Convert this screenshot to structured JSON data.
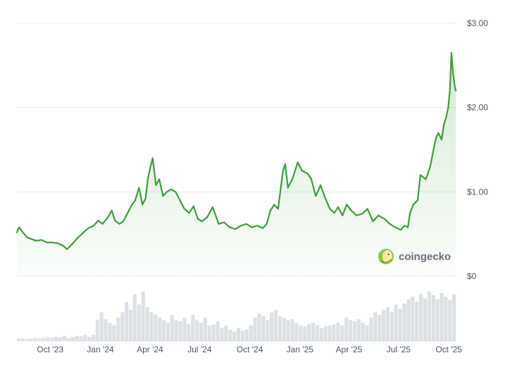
{
  "chart_data": {
    "type": "line",
    "title": "",
    "xlabel": "",
    "ylabel": "",
    "y_axis_position": "right",
    "ylim": [
      0,
      3
    ],
    "y_ticks": [
      {
        "value": 0,
        "label": "$0"
      },
      {
        "value": 1,
        "label": "$1.00"
      },
      {
        "value": 2,
        "label": "$2.00"
      },
      {
        "value": 3,
        "label": "$3.00"
      }
    ],
    "x_ticks": [
      {
        "date": "2023-10-01",
        "label": "Oct '23"
      },
      {
        "date": "2024-01-01",
        "label": "Jan '24"
      },
      {
        "date": "2024-04-01",
        "label": "Apr '24"
      },
      {
        "date": "2024-07-01",
        "label": "Jul '24"
      },
      {
        "date": "2024-10-01",
        "label": "Oct '24"
      },
      {
        "date": "2025-01-01",
        "label": "Jan '25"
      },
      {
        "date": "2025-04-01",
        "label": "Apr '25"
      },
      {
        "date": "2025-07-01",
        "label": "Jul '25"
      },
      {
        "date": "2025-10-01",
        "label": "Oct '25"
      }
    ],
    "xlim": [
      "2023-08-01",
      "2025-10-15"
    ],
    "grid": true,
    "line_color": "#3c9d3c",
    "fill_color": "#dff2df",
    "volume_color": "#dde0e4",
    "series": [
      {
        "x": [
          "2023-08-01",
          "2023-08-05",
          "2023-08-12",
          "2023-08-20",
          "2023-08-28",
          "2023-09-05",
          "2023-09-15",
          "2023-09-25",
          "2023-10-05",
          "2023-10-15",
          "2023-10-25",
          "2023-11-01",
          "2023-11-10",
          "2023-11-20",
          "2023-12-01",
          "2023-12-10",
          "2023-12-20",
          "2023-12-28",
          "2024-01-05",
          "2024-01-15",
          "2024-01-22",
          "2024-01-28",
          "2024-02-05",
          "2024-02-12",
          "2024-02-20",
          "2024-02-28",
          "2024-03-05",
          "2024-03-12",
          "2024-03-18",
          "2024-03-24",
          "2024-03-28",
          "2024-04-02",
          "2024-04-06",
          "2024-04-12",
          "2024-04-18",
          "2024-04-25",
          "2024-05-02",
          "2024-05-10",
          "2024-05-18",
          "2024-05-26",
          "2024-06-03",
          "2024-06-12",
          "2024-06-20",
          "2024-06-28",
          "2024-07-05",
          "2024-07-15",
          "2024-07-25",
          "2024-08-05",
          "2024-08-15",
          "2024-08-25",
          "2024-09-05",
          "2024-09-15",
          "2024-09-25",
          "2024-10-05",
          "2024-10-15",
          "2024-10-25",
          "2024-11-01",
          "2024-11-08",
          "2024-11-15",
          "2024-11-22",
          "2024-12-01",
          "2024-12-05",
          "2024-12-10",
          "2024-12-18",
          "2024-12-28",
          "2025-01-05",
          "2025-01-15",
          "2025-01-22",
          "2025-01-30",
          "2025-02-08",
          "2025-02-15",
          "2025-02-25",
          "2025-03-05",
          "2025-03-12",
          "2025-03-20",
          "2025-03-28",
          "2025-04-05",
          "2025-04-15",
          "2025-04-25",
          "2025-05-05",
          "2025-05-15",
          "2025-05-25",
          "2025-06-05",
          "2025-06-15",
          "2025-06-25",
          "2025-07-05",
          "2025-07-12",
          "2025-07-18",
          "2025-07-22",
          "2025-07-28",
          "2025-08-05",
          "2025-08-10",
          "2025-08-20",
          "2025-08-28",
          "2025-09-03",
          "2025-09-08",
          "2025-09-12",
          "2025-09-18",
          "2025-09-22",
          "2025-09-26",
          "2025-09-30",
          "2025-10-03",
          "2025-10-06",
          "2025-10-09",
          "2025-10-12",
          "2025-10-14"
        ],
        "values": [
          0.52,
          0.58,
          0.52,
          0.46,
          0.44,
          0.42,
          0.43,
          0.4,
          0.4,
          0.39,
          0.36,
          0.32,
          0.38,
          0.45,
          0.52,
          0.57,
          0.6,
          0.66,
          0.62,
          0.7,
          0.78,
          0.66,
          0.62,
          0.65,
          0.75,
          0.85,
          0.9,
          1.05,
          0.85,
          0.92,
          1.15,
          1.3,
          1.4,
          1.08,
          1.15,
          0.95,
          1.0,
          1.03,
          1.0,
          0.9,
          0.8,
          0.75,
          0.83,
          0.68,
          0.65,
          0.7,
          0.82,
          0.62,
          0.64,
          0.58,
          0.56,
          0.6,
          0.62,
          0.58,
          0.6,
          0.57,
          0.62,
          0.78,
          0.85,
          0.8,
          1.25,
          1.33,
          1.05,
          1.15,
          1.35,
          1.25,
          1.22,
          1.15,
          0.95,
          1.08,
          0.95,
          0.8,
          0.75,
          0.82,
          0.72,
          0.85,
          0.78,
          0.72,
          0.74,
          0.8,
          0.65,
          0.72,
          0.68,
          0.62,
          0.58,
          0.55,
          0.6,
          0.58,
          0.75,
          0.85,
          0.9,
          1.2,
          1.15,
          1.3,
          1.5,
          1.65,
          1.7,
          1.62,
          1.8,
          1.88,
          2.0,
          2.2,
          2.65,
          2.4,
          2.25,
          2.2
        ]
      }
    ],
    "volume": [
      0.05,
      0.05,
      0.04,
      0.05,
      0.06,
      0.05,
      0.06,
      0.07,
      0.06,
      0.08,
      0.07,
      0.1,
      0.06,
      0.08,
      0.1,
      0.09,
      0.12,
      0.08,
      0.12,
      0.4,
      0.55,
      0.42,
      0.35,
      0.3,
      0.45,
      0.55,
      0.75,
      0.6,
      0.9,
      0.7,
      0.95,
      0.65,
      0.55,
      0.5,
      0.45,
      0.4,
      0.35,
      0.5,
      0.4,
      0.38,
      0.45,
      0.32,
      0.5,
      0.4,
      0.35,
      0.45,
      0.3,
      0.32,
      0.38,
      0.25,
      0.3,
      0.22,
      0.18,
      0.25,
      0.2,
      0.22,
      0.3,
      0.45,
      0.52,
      0.48,
      0.4,
      0.55,
      0.6,
      0.48,
      0.45,
      0.4,
      0.42,
      0.35,
      0.3,
      0.28,
      0.32,
      0.35,
      0.3,
      0.25,
      0.28,
      0.3,
      0.32,
      0.35,
      0.3,
      0.45,
      0.4,
      0.38,
      0.42,
      0.35,
      0.3,
      0.45,
      0.55,
      0.5,
      0.6,
      0.65,
      0.55,
      0.7,
      0.62,
      0.72,
      0.8,
      0.85,
      0.75,
      0.9,
      0.82,
      0.95,
      0.88,
      0.8,
      0.92,
      0.85,
      0.78,
      0.9
    ],
    "watermark": "coingecko"
  }
}
